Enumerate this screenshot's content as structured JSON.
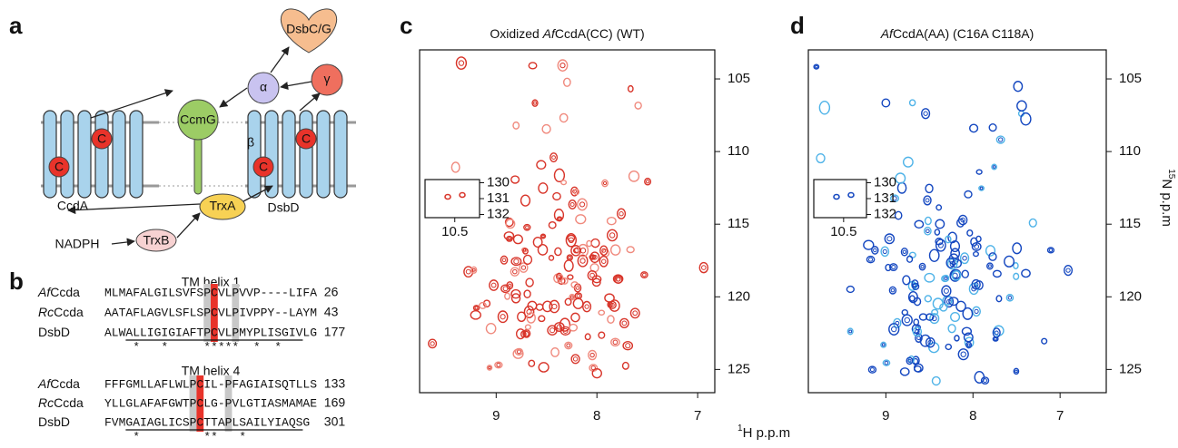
{
  "panel_labels": [
    "a",
    "b",
    "c",
    "d"
  ],
  "diagram": {
    "ccda": "CcdA",
    "dsbd": "DsbD",
    "ccmg": "CcmG",
    "dsbcg": "DsbC/G",
    "alpha": "α",
    "gamma": "γ",
    "beta": "β",
    "cys": "C",
    "trxa": "TrxA",
    "trxb": "TrxB",
    "nadph": "NADPH"
  },
  "alignments": [
    {
      "title": "TM helix 1",
      "rows": [
        {
          "prefix": "Af",
          "name": "Ccda",
          "sequence": "MLMAFALGILSVFSPCVLPVVP----LIFA",
          "end": 26
        },
        {
          "prefix": "Rc",
          "name": "Ccda",
          "sequence": "AATAFLAGVLSFLSPCVLPIVPPY--LAYM",
          "end": 43
        },
        {
          "name": "DsbD",
          "sequence": "ALWALLIGIGIAFTPCVLPMYPLISGIVLG",
          "end": 177
        }
      ],
      "conservation": "    *   *     *****  *  *"
    },
    {
      "title": "TM helix 4",
      "rows": [
        {
          "prefix": "Af",
          "name": "Ccda",
          "sequence": "FFFGMLLAFLWLPCIL-PFAGIAISQTLLS",
          "end": 133
        },
        {
          "prefix": "Rc",
          "name": "Ccda",
          "sequence": "YLLGLAFAFGWTPCLG-PVLGTIASMAMAE",
          "end": 169
        },
        {
          "name": "DsbD",
          "sequence": "FVMGAIAGLICSPCTTAPLSAILYIAQSG",
          "end": 301
        }
      ],
      "conservation": "    *         **   *"
    }
  ],
  "spectra": [
    {
      "title_parts": [
        "Oxidized ",
        "Af",
        "CcdA(CC) (WT)"
      ],
      "xlim": [
        9.76,
        6.83
      ],
      "xticks": [
        9,
        8,
        7
      ],
      "ylim": [
        103,
        126.6
      ],
      "yticks": [
        105,
        110,
        115,
        120,
        125
      ],
      "inset": {
        "xlim": [
          10.8,
          10.25
        ],
        "xticks": [
          10.5
        ],
        "ylim": [
          129.8,
          132.2
        ],
        "yticks": [
          130,
          131,
          132
        ]
      }
    },
    {
      "title_parts": [
        "",
        "Af",
        "CcdA(AA) (C16A C118A)"
      ],
      "xlim": [
        9.89,
        6.47
      ],
      "xticks": [
        9,
        8,
        7
      ],
      "ylim": [
        103,
        126.6
      ],
      "yticks": [
        105,
        110,
        115,
        120,
        125
      ],
      "inset": {
        "xlim": [
          10.8,
          10.27
        ],
        "xticks": [
          10.5
        ],
        "ylim": [
          129.8,
          132.2
        ],
        "yticks": [
          130,
          131,
          132
        ]
      }
    }
  ],
  "x_label": {
    "sup": "1",
    "text": "H p.p.m"
  },
  "y_label": {
    "sup": "15",
    "text": "N p.p.m"
  }
}
